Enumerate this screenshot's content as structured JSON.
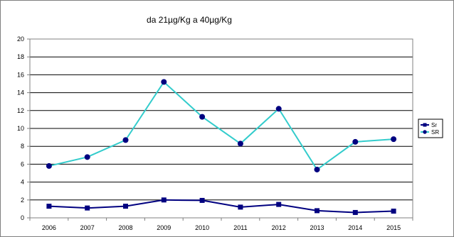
{
  "chart_data": {
    "type": "line",
    "title": "da 21µg/Kg a 40µg/Kg",
    "xlabel": "",
    "ylabel": "",
    "categories": [
      "2006",
      "2007",
      "2008",
      "2009",
      "2010",
      "2011",
      "2012",
      "2013",
      "2014",
      "2015"
    ],
    "ylim": [
      0,
      20
    ],
    "yticks": [
      "0",
      "2",
      "4",
      "6",
      "8",
      "10",
      "12",
      "14",
      "16",
      "18",
      "20"
    ],
    "grid": true,
    "legend_position": "right",
    "series": [
      {
        "name": "Sr",
        "color": "#000080",
        "marker": "square",
        "values": [
          1.3,
          1.1,
          1.3,
          2.0,
          1.95,
          1.2,
          1.5,
          0.8,
          0.6,
          0.75
        ]
      },
      {
        "name": "SR",
        "color": "#33cccc",
        "marker_color": "#000080",
        "marker": "circle",
        "values": [
          5.8,
          6.8,
          8.7,
          15.2,
          11.3,
          8.3,
          12.2,
          5.4,
          8.5,
          8.8
        ]
      }
    ]
  }
}
